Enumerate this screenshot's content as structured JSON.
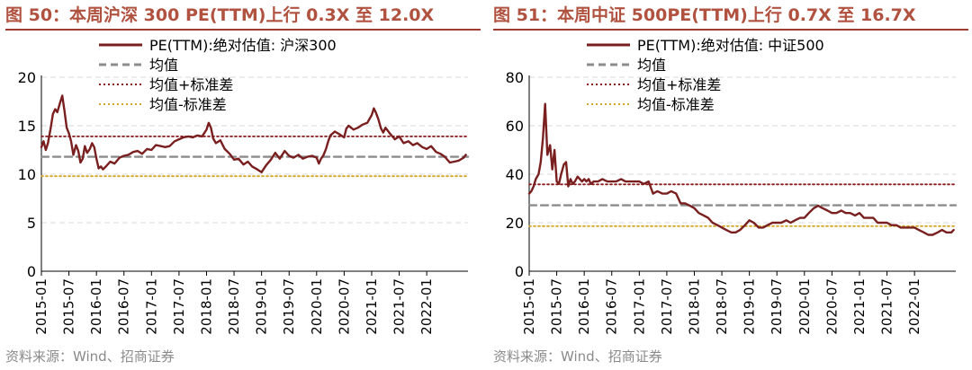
{
  "panels": [
    {
      "title": "图 50：本周沪深 300 PE(TTM)上行 0.3X 至 12.0X",
      "source": "资料来源：Wind、招商证券",
      "legend": {
        "series": "PE(TTM):绝对估值: 沪深300",
        "mean": "均值",
        "upper": "均值+标准差",
        "lower": "均值-标准差"
      }
    },
    {
      "title": "图 51：本周中证 500PE(TTM)上行 0.7X 至 16.7X",
      "source": "资料来源：Wind、招商证券",
      "legend": {
        "series": "PE(TTM):绝对估值: 中证500",
        "mean": "均值",
        "upper": "均值+标准差",
        "lower": "均值-标准差"
      }
    }
  ],
  "colors": {
    "series": "#7a1f1f",
    "mean": "#8c8c8c",
    "upper": "#8b1a1a",
    "lower": "#d4a72c",
    "title": "#b0523f"
  },
  "chart_data": [
    {
      "type": "line",
      "title": "图 50：本周沪深 300 PE(TTM)上行 0.3X 至 12.0X",
      "xlabel": "",
      "ylabel": "",
      "ylim": [
        0,
        20
      ],
      "yticks": [
        0,
        5,
        10,
        15,
        20
      ],
      "xlim": [
        2015.0,
        2022.75
      ],
      "xtick_labels": [
        "2015-01",
        "2015-07",
        "2016-01",
        "2016-07",
        "2017-01",
        "2017-07",
        "2018-01",
        "2018-07",
        "2019-01",
        "2019-07",
        "2020-01",
        "2020-07",
        "2021-01",
        "2021-07",
        "2022-01"
      ],
      "grid": true,
      "legend_position": "top",
      "series": [
        {
          "name": "PE(TTM):绝对估值: 沪深300",
          "x": [
            2015.0,
            2015.04,
            2015.08,
            2015.12,
            2015.17,
            2015.21,
            2015.25,
            2015.29,
            2015.33,
            2015.38,
            2015.42,
            2015.46,
            2015.5,
            2015.54,
            2015.58,
            2015.63,
            2015.67,
            2015.71,
            2015.75,
            2015.79,
            2015.83,
            2015.88,
            2015.92,
            2015.96,
            2016.0,
            2016.04,
            2016.08,
            2016.12,
            2016.17,
            2016.25,
            2016.33,
            2016.42,
            2016.5,
            2016.58,
            2016.67,
            2016.75,
            2016.83,
            2016.92,
            2017.0,
            2017.08,
            2017.17,
            2017.25,
            2017.33,
            2017.42,
            2017.5,
            2017.58,
            2017.67,
            2017.75,
            2017.83,
            2017.92,
            2018.0,
            2018.04,
            2018.08,
            2018.12,
            2018.17,
            2018.25,
            2018.33,
            2018.42,
            2018.5,
            2018.58,
            2018.67,
            2018.75,
            2018.83,
            2018.92,
            2019.0,
            2019.08,
            2019.17,
            2019.25,
            2019.33,
            2019.42,
            2019.5,
            2019.58,
            2019.67,
            2019.75,
            2019.83,
            2019.92,
            2020.0,
            2020.04,
            2020.08,
            2020.12,
            2020.17,
            2020.21,
            2020.25,
            2020.33,
            2020.42,
            2020.5,
            2020.54,
            2020.58,
            2020.67,
            2020.75,
            2020.83,
            2020.92,
            2021.0,
            2021.04,
            2021.08,
            2021.12,
            2021.17,
            2021.21,
            2021.25,
            2021.33,
            2021.42,
            2021.5,
            2021.58,
            2021.67,
            2021.75,
            2021.83,
            2021.92,
            2022.0,
            2022.08,
            2022.17,
            2022.25,
            2022.33,
            2022.42,
            2022.5,
            2022.58,
            2022.67,
            2022.71
          ],
          "y": [
            12.8,
            13.4,
            12.5,
            13.2,
            14.8,
            16.2,
            16.7,
            16.4,
            17.2,
            18.1,
            16.5,
            14.8,
            14.2,
            13.4,
            12.0,
            13.0,
            12.4,
            11.2,
            11.6,
            12.9,
            12.2,
            12.6,
            13.2,
            12.8,
            11.6,
            10.6,
            10.8,
            10.5,
            10.8,
            11.3,
            11.1,
            11.7,
            11.9,
            12.0,
            12.3,
            12.4,
            12.1,
            12.6,
            12.5,
            13.0,
            12.9,
            12.8,
            12.9,
            13.4,
            13.6,
            13.8,
            13.9,
            13.8,
            14.0,
            13.9,
            14.6,
            15.3,
            14.8,
            13.7,
            13.2,
            13.5,
            12.6,
            12.1,
            11.5,
            11.6,
            11.0,
            11.3,
            10.8,
            10.5,
            10.2,
            10.9,
            11.5,
            12.2,
            11.6,
            12.4,
            11.9,
            11.7,
            12.0,
            11.6,
            11.8,
            11.9,
            11.7,
            11.1,
            11.6,
            11.9,
            12.6,
            13.4,
            14.0,
            14.4,
            14.1,
            13.8,
            14.7,
            15.0,
            14.6,
            14.8,
            15.1,
            15.3,
            16.1,
            16.8,
            16.3,
            15.7,
            14.7,
            14.3,
            14.8,
            14.2,
            13.6,
            13.9,
            13.2,
            13.4,
            13.0,
            13.2,
            12.8,
            12.6,
            12.9,
            12.3,
            12.1,
            11.8,
            11.2,
            11.3,
            11.4,
            11.7,
            12.0
          ]
        },
        {
          "name": "均值",
          "x": [
            2015.0,
            2022.75
          ],
          "y": [
            11.8,
            11.8
          ]
        },
        {
          "name": "均值+标准差",
          "x": [
            2015.0,
            2022.75
          ],
          "y": [
            13.9,
            13.9
          ]
        },
        {
          "name": "均值-标准差",
          "x": [
            2015.0,
            2022.75
          ],
          "y": [
            9.8,
            9.8
          ]
        }
      ]
    },
    {
      "type": "line",
      "title": "图 51：本周中证 500PE(TTM)上行 0.7X 至 16.7X",
      "xlabel": "",
      "ylabel": "",
      "ylim": [
        0,
        80
      ],
      "yticks": [
        0,
        20,
        40,
        60,
        80
      ],
      "xlim": [
        2015.0,
        2022.75
      ],
      "xtick_labels": [
        "2015-01",
        "2015-07",
        "2016-01",
        "2016-07",
        "2017-01",
        "2017-07",
        "2018-01",
        "2018-07",
        "2019-01",
        "2019-07",
        "2020-01",
        "2020-07",
        "2021-01",
        "2021-07",
        "2022-01"
      ],
      "grid": true,
      "legend_position": "top",
      "series": [
        {
          "name": "PE(TTM):绝对估值: 中证500",
          "x": [
            2015.0,
            2015.04,
            2015.08,
            2015.12,
            2015.17,
            2015.21,
            2015.25,
            2015.29,
            2015.33,
            2015.38,
            2015.42,
            2015.46,
            2015.5,
            2015.54,
            2015.58,
            2015.63,
            2015.67,
            2015.71,
            2015.75,
            2015.79,
            2015.83,
            2015.88,
            2015.92,
            2015.96,
            2016.0,
            2016.04,
            2016.08,
            2016.12,
            2016.17,
            2016.25,
            2016.33,
            2016.42,
            2016.5,
            2016.58,
            2016.67,
            2016.75,
            2016.83,
            2016.92,
            2017.0,
            2017.08,
            2017.17,
            2017.25,
            2017.33,
            2017.42,
            2017.5,
            2017.58,
            2017.67,
            2017.75,
            2017.83,
            2017.92,
            2018.0,
            2018.08,
            2018.17,
            2018.25,
            2018.33,
            2018.42,
            2018.5,
            2018.58,
            2018.67,
            2018.75,
            2018.83,
            2018.92,
            2019.0,
            2019.08,
            2019.17,
            2019.25,
            2019.33,
            2019.42,
            2019.5,
            2019.58,
            2019.67,
            2019.75,
            2019.83,
            2019.92,
            2020.0,
            2020.08,
            2020.17,
            2020.25,
            2020.33,
            2020.42,
            2020.5,
            2020.58,
            2020.67,
            2020.75,
            2020.83,
            2020.92,
            2021.0,
            2021.08,
            2021.17,
            2021.25,
            2021.33,
            2021.42,
            2021.5,
            2021.58,
            2021.67,
            2021.75,
            2021.83,
            2021.92,
            2022.0,
            2022.08,
            2022.17,
            2022.25,
            2022.33,
            2022.42,
            2022.5,
            2022.58,
            2022.67,
            2022.71
          ],
          "y": [
            32,
            33,
            35,
            38,
            40,
            45,
            55,
            69,
            48,
            52,
            42,
            50,
            37,
            36,
            40,
            44,
            45,
            35,
            38,
            36,
            37,
            39,
            38,
            37,
            38,
            37,
            38,
            36,
            37,
            37,
            38,
            37,
            37,
            37,
            38,
            37,
            37,
            37,
            37,
            36,
            37,
            32,
            33,
            32,
            32,
            33,
            32,
            28,
            28,
            27,
            26,
            24,
            23,
            22,
            20,
            19,
            18,
            17,
            16,
            16,
            17,
            19,
            21,
            20,
            18,
            18,
            19,
            20,
            20,
            20,
            21,
            20,
            21,
            22,
            22,
            24,
            26,
            27,
            26,
            25,
            24,
            24,
            25,
            24,
            24,
            23,
            24,
            22,
            22,
            22,
            20,
            20,
            20,
            19,
            19,
            18,
            18,
            18,
            18,
            17,
            16,
            15,
            15,
            16,
            17,
            16,
            16,
            17
          ]
        },
        {
          "name": "均值",
          "x": [
            2015.0,
            2022.75
          ],
          "y": [
            27.2,
            27.2
          ]
        },
        {
          "name": "均值+标准差",
          "x": [
            2015.0,
            2022.75
          ],
          "y": [
            35.8,
            35.8
          ]
        },
        {
          "name": "均值-标准差",
          "x": [
            2015.0,
            2022.75
          ],
          "y": [
            18.6,
            18.6
          ]
        }
      ]
    }
  ]
}
